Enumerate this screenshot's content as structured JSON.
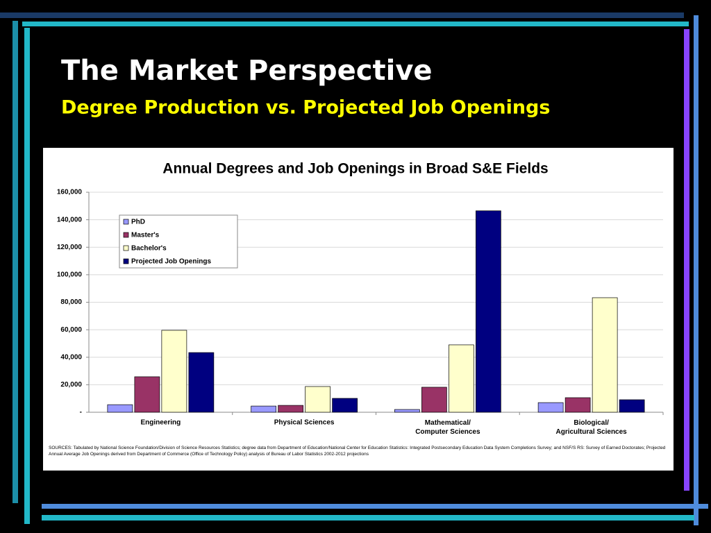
{
  "slide_title": "The Market Perspective",
  "slide_subtitle": "Degree Production vs. Projected Job Openings",
  "chart_data": {
    "type": "bar",
    "title": "Annual Degrees and Job Openings in Broad S&E Fields",
    "categories": [
      "Engineering",
      "Physical Sciences",
      "Mathematical/\nComputer Sciences",
      "Biological/\nAgricultural Sciences"
    ],
    "series": [
      {
        "name": "PhD",
        "color": "#9999ff",
        "values": [
          5500,
          4500,
          2000,
          7000
        ]
      },
      {
        "name": "Master's",
        "color": "#993366",
        "values": [
          25800,
          5000,
          18200,
          10600
        ]
      },
      {
        "name": "Bachelor's",
        "color": "#ffffcc",
        "values": [
          59600,
          18700,
          49000,
          83300
        ]
      },
      {
        "name": "Projected Job Openings",
        "color": "#000080",
        "values": [
          43400,
          10100,
          146500,
          9100
        ]
      }
    ],
    "ylim": [
      0,
      160000
    ],
    "yticks": [
      {
        "value": 0,
        "label": "-"
      },
      {
        "value": 20000,
        "label": "20,000"
      },
      {
        "value": 40000,
        "label": "40,000"
      },
      {
        "value": 60000,
        "label": "60,000"
      },
      {
        "value": 80000,
        "label": "80,000"
      },
      {
        "value": 100000,
        "label": "100,000"
      },
      {
        "value": 120000,
        "label": "120,000"
      },
      {
        "value": 140000,
        "label": "140,000"
      },
      {
        "value": 160000,
        "label": "160,000"
      }
    ],
    "grid": true,
    "legend": "upper-left",
    "source": "SOURCES:    Tabulated by National Science Foundation/Division of Science Resources Statistics; degree data from Department of Education/National Center for Education Statistics:  Integrated Postsecondary Education Data System Completions Survey; and NSF/S RS: Survey of Earned Doctorates; Projected Annual Average Job Openings derived from Department of Commerce (Office of Technology Policy) analysis of Bureau of Labor Statistics 2002-2012 projections"
  }
}
